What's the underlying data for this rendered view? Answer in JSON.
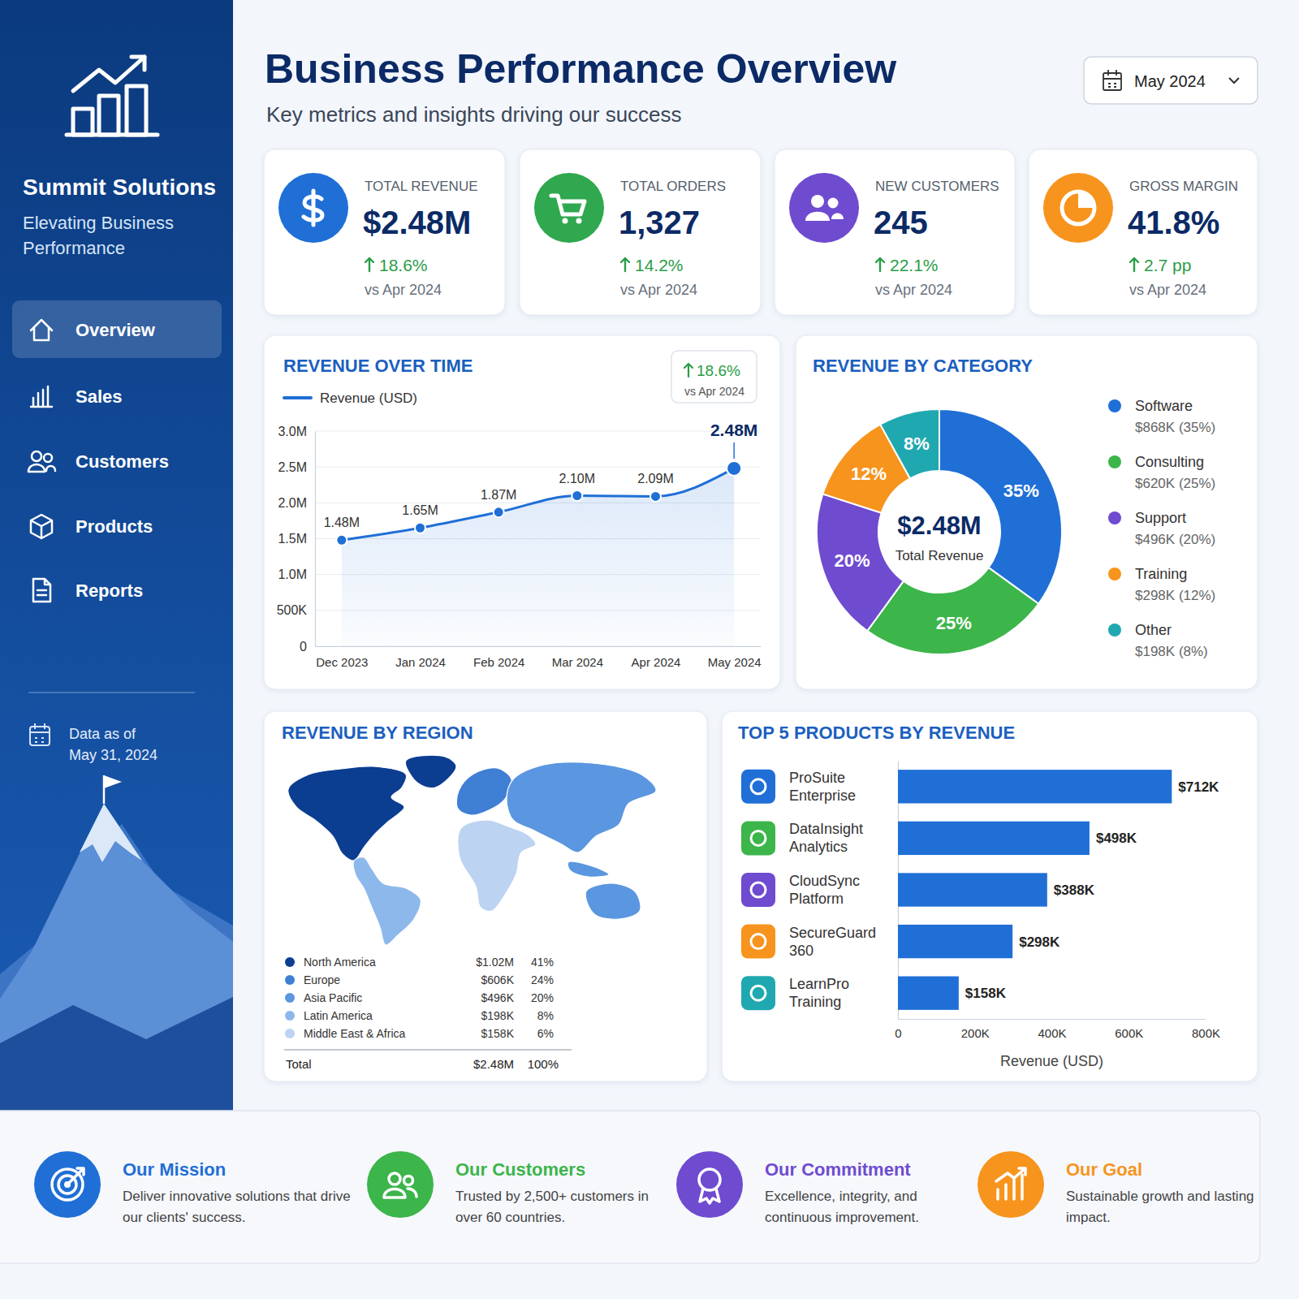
{
  "sidebar": {
    "brand": "Summit Solutions",
    "tagline": "Elevating Business Performance",
    "nav": [
      "Overview",
      "Sales",
      "Customers",
      "Products",
      "Reports"
    ],
    "data_as_of": "Data as of May 31, 2024"
  },
  "header": {
    "title": "Business Performance Overview",
    "subtitle": "Key metrics and insights driving our success",
    "period": "May 2024"
  },
  "kpis": [
    {
      "label": "TOTAL REVENUE",
      "value": "$2.48M",
      "change": "18.6%",
      "comparison": "vs Apr 2024"
    },
    {
      "label": "TOTAL ORDERS",
      "value": "1,327",
      "change": "14.2%",
      "comparison": "vs Apr 2024"
    },
    {
      "label": "NEW CUSTOMERS",
      "value": "245",
      "change": "22.1%",
      "comparison": "vs Apr 2024"
    },
    {
      "label": "GROSS MARGIN",
      "value": "41.8%",
      "change": "2.7 pp",
      "comparison": "vs Apr 2024"
    }
  ],
  "chart_data": [
    {
      "type": "line",
      "title": "REVENUE OVER TIME",
      "categories": [
        "Dec 2023",
        "Jan 2024",
        "Feb 2024",
        "Mar 2024",
        "Apr 2024",
        "May 2024"
      ],
      "series": [
        {
          "name": "Revenue (USD)",
          "color": "#1f6fd6",
          "marker": "circle",
          "values": [
            1480000,
            1650000,
            1870000,
            2100000,
            2090000,
            2480000
          ],
          "value_labels": [
            "1.48M",
            "1.65M",
            "1.87M",
            "2.10M",
            "2.09M",
            "2.48M"
          ]
        }
      ],
      "ylim": [
        0,
        3000000
      ],
      "yticks": [
        0,
        {
          "value": 500000,
          "label": "500K"
        },
        {
          "value": 1000000,
          "label": "1.0M"
        },
        {
          "value": 1500000,
          "label": "1.5M"
        },
        {
          "value": 2000000,
          "label": "2.0M"
        },
        {
          "value": 2500000,
          "label": "2.5M"
        },
        {
          "value": 3000000,
          "label": "3.0M"
        }
      ],
      "grid": true,
      "data_labels": true,
      "legend": "top-left",
      "annotation": {
        "text": "18.6%",
        "subtext": "vs Apr 2024"
      }
    },
    {
      "type": "pie",
      "title": "REVENUE BY CATEGORY",
      "categories": [
        "Software",
        "Consulting",
        "Support",
        "Training",
        "Other"
      ],
      "values": [
        35,
        25,
        20,
        12,
        8
      ],
      "value_labels": [
        "35%",
        "25%",
        "20%",
        "12%",
        "8%"
      ],
      "colors": [
        "#1f6fd6",
        "#3cb54a",
        "#6f4bd0",
        "#f7941d",
        "#1fa8b0"
      ],
      "legend_details": [
        "$868K (35%)",
        "$620K (25%)",
        "$496K (20%)",
        "$298K (12%)",
        "$198K (8%)"
      ],
      "center_value": "$2.48M",
      "center_label": "Total Revenue",
      "data_labels": true,
      "legend": "right"
    },
    {
      "type": "map",
      "title": "REVENUE BY REGION",
      "categories": [
        "North America",
        "Europe",
        "Asia Pacific",
        "Latin America",
        "Middle East & Africa"
      ],
      "values": [
        41,
        24,
        20,
        8,
        6
      ],
      "value_labels": [
        "41%",
        "24%",
        "20%",
        "8%",
        "6%"
      ],
      "amount_labels": [
        "$1.02M",
        "$606K",
        "$496K",
        "$198K",
        "$158K"
      ],
      "colors": [
        "#0b3d91",
        "#3f7fd4",
        "#5b96e0",
        "#8db8ec",
        "#bcd3f2"
      ],
      "total": {
        "label": "Total",
        "amount": "$2.48M",
        "share": "100%"
      }
    },
    {
      "type": "bar",
      "orientation": "horizontal",
      "title": "TOP 5 PRODUCTS BY REVENUE",
      "categories": [
        "ProSuite Enterprise",
        "DataInsight Analytics",
        "CloudSync Platform",
        "SecureGuard 360",
        "LearnPro Training"
      ],
      "values": [
        712000,
        498000,
        388000,
        298000,
        158000
      ],
      "value_labels": [
        "$712K",
        "$498K",
        "$388K",
        "$298K",
        "$158K"
      ],
      "color": "#1f6fd6",
      "xlim": [
        0,
        800000
      ],
      "xticks": [
        0,
        {
          "value": 200000,
          "label": "200K"
        },
        {
          "value": 400000,
          "label": "400K"
        },
        {
          "value": 600000,
          "label": "600K"
        },
        {
          "value": 800000,
          "label": "800K"
        }
      ],
      "x_label": "Revenue (USD)",
      "data_labels": true,
      "grid": false
    }
  ],
  "footer": [
    {
      "title": "Our Mission",
      "text": "Deliver innovative solutions that drive our clients' success."
    },
    {
      "title": "Our Customers",
      "text": "Trusted by 2,500+ customers in over 60 countries."
    },
    {
      "title": "Our Commitment",
      "text": "Excellence, integrity, and continuous improvement."
    },
    {
      "title": "Our Goal",
      "text": "Sustainable growth and lasting impact."
    }
  ]
}
